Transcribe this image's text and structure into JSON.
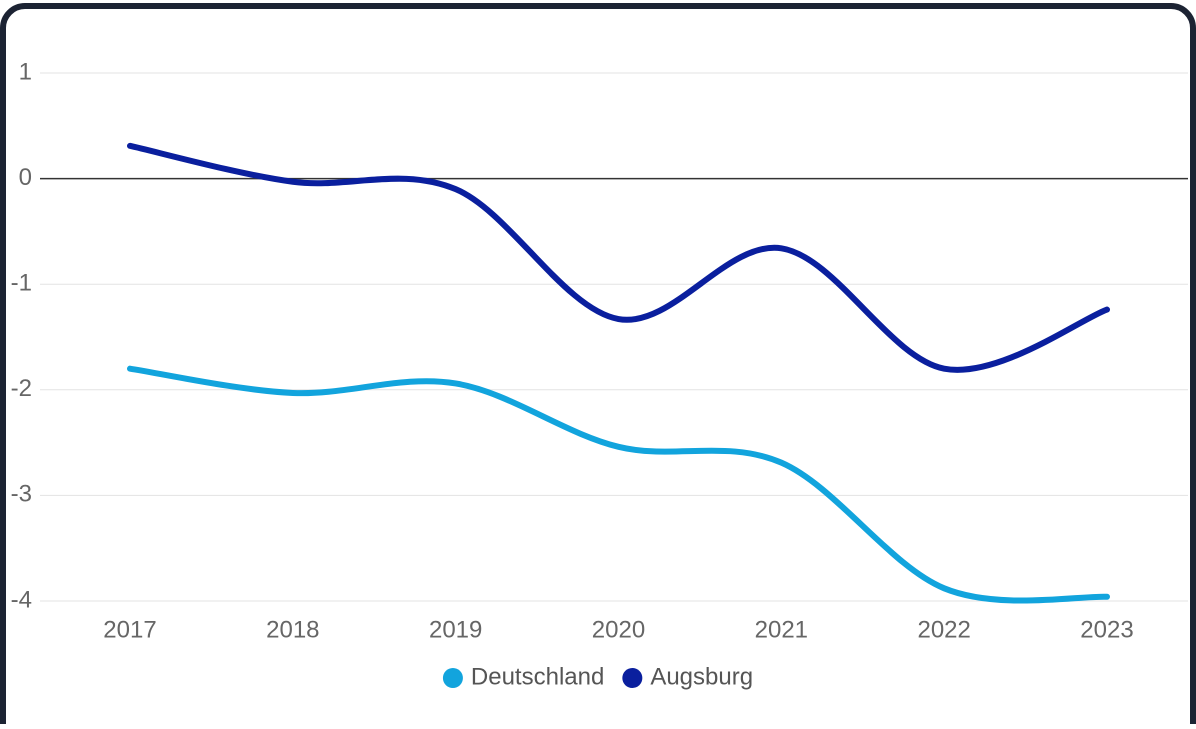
{
  "chart_data": {
    "type": "line",
    "categories": [
      "2017",
      "2018",
      "2019",
      "2020",
      "2021",
      "2022",
      "2023"
    ],
    "series": [
      {
        "name": "Deutschland",
        "color": "#12a4dd",
        "values": [
          -1.8,
          -2.03,
          -1.94,
          -2.54,
          -2.69,
          -3.88,
          -3.96
        ]
      },
      {
        "name": "Augsburg",
        "color": "#0a1f9e",
        "values": [
          0.31,
          -0.03,
          -0.1,
          -1.33,
          -0.66,
          -1.8,
          -1.24
        ]
      }
    ],
    "ylim": [
      -4,
      1
    ],
    "yticks": [
      1,
      0,
      -1,
      -2,
      -3,
      -4
    ],
    "grid": true,
    "legend": "bottom"
  }
}
